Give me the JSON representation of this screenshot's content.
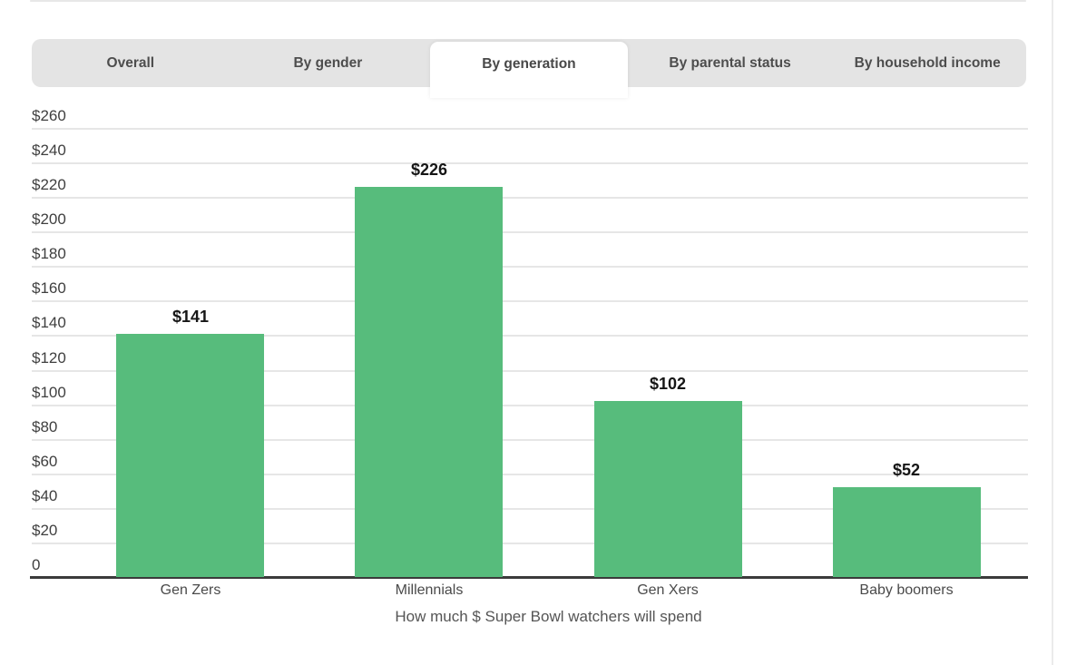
{
  "tabs": {
    "items": [
      {
        "label": "Overall",
        "active": false
      },
      {
        "label": "By gender",
        "active": false
      },
      {
        "label": "By generation",
        "active": true
      },
      {
        "label": "By parental status",
        "active": false
      },
      {
        "label": "By household income",
        "active": false
      }
    ]
  },
  "chart_data": {
    "type": "bar",
    "title": "",
    "xlabel": "How much $ Super Bowl watchers will spend",
    "ylabel": "",
    "categories": [
      "Gen Zers",
      "Millennials",
      "Gen Xers",
      "Baby boomers"
    ],
    "values": [
      141,
      226,
      102,
      52
    ],
    "value_labels": [
      "$141",
      "$226",
      "$102",
      "$52"
    ],
    "y_ticks": [
      {
        "value": 260,
        "label": "$260"
      },
      {
        "value": 240,
        "label": "$240"
      },
      {
        "value": 220,
        "label": "$220"
      },
      {
        "value": 200,
        "label": "$200"
      },
      {
        "value": 180,
        "label": "$180"
      },
      {
        "value": 160,
        "label": "$160"
      },
      {
        "value": 140,
        "label": "$140"
      },
      {
        "value": 120,
        "label": "$120"
      },
      {
        "value": 100,
        "label": "$100"
      },
      {
        "value": 80,
        "label": "$80"
      },
      {
        "value": 60,
        "label": "$60"
      },
      {
        "value": 40,
        "label": "$40"
      },
      {
        "value": 20,
        "label": "$20"
      },
      {
        "value": 0,
        "label": "0"
      }
    ],
    "ylim": [
      0,
      260
    ],
    "grid": true,
    "legend": "none"
  },
  "colors": {
    "bar": "#57bc7c",
    "tab_bar_bg": "#e4e4e4",
    "active_tab_bg": "#ffffff",
    "gridline": "#e6e6e6",
    "axis_line": "#3b3b3b"
  }
}
